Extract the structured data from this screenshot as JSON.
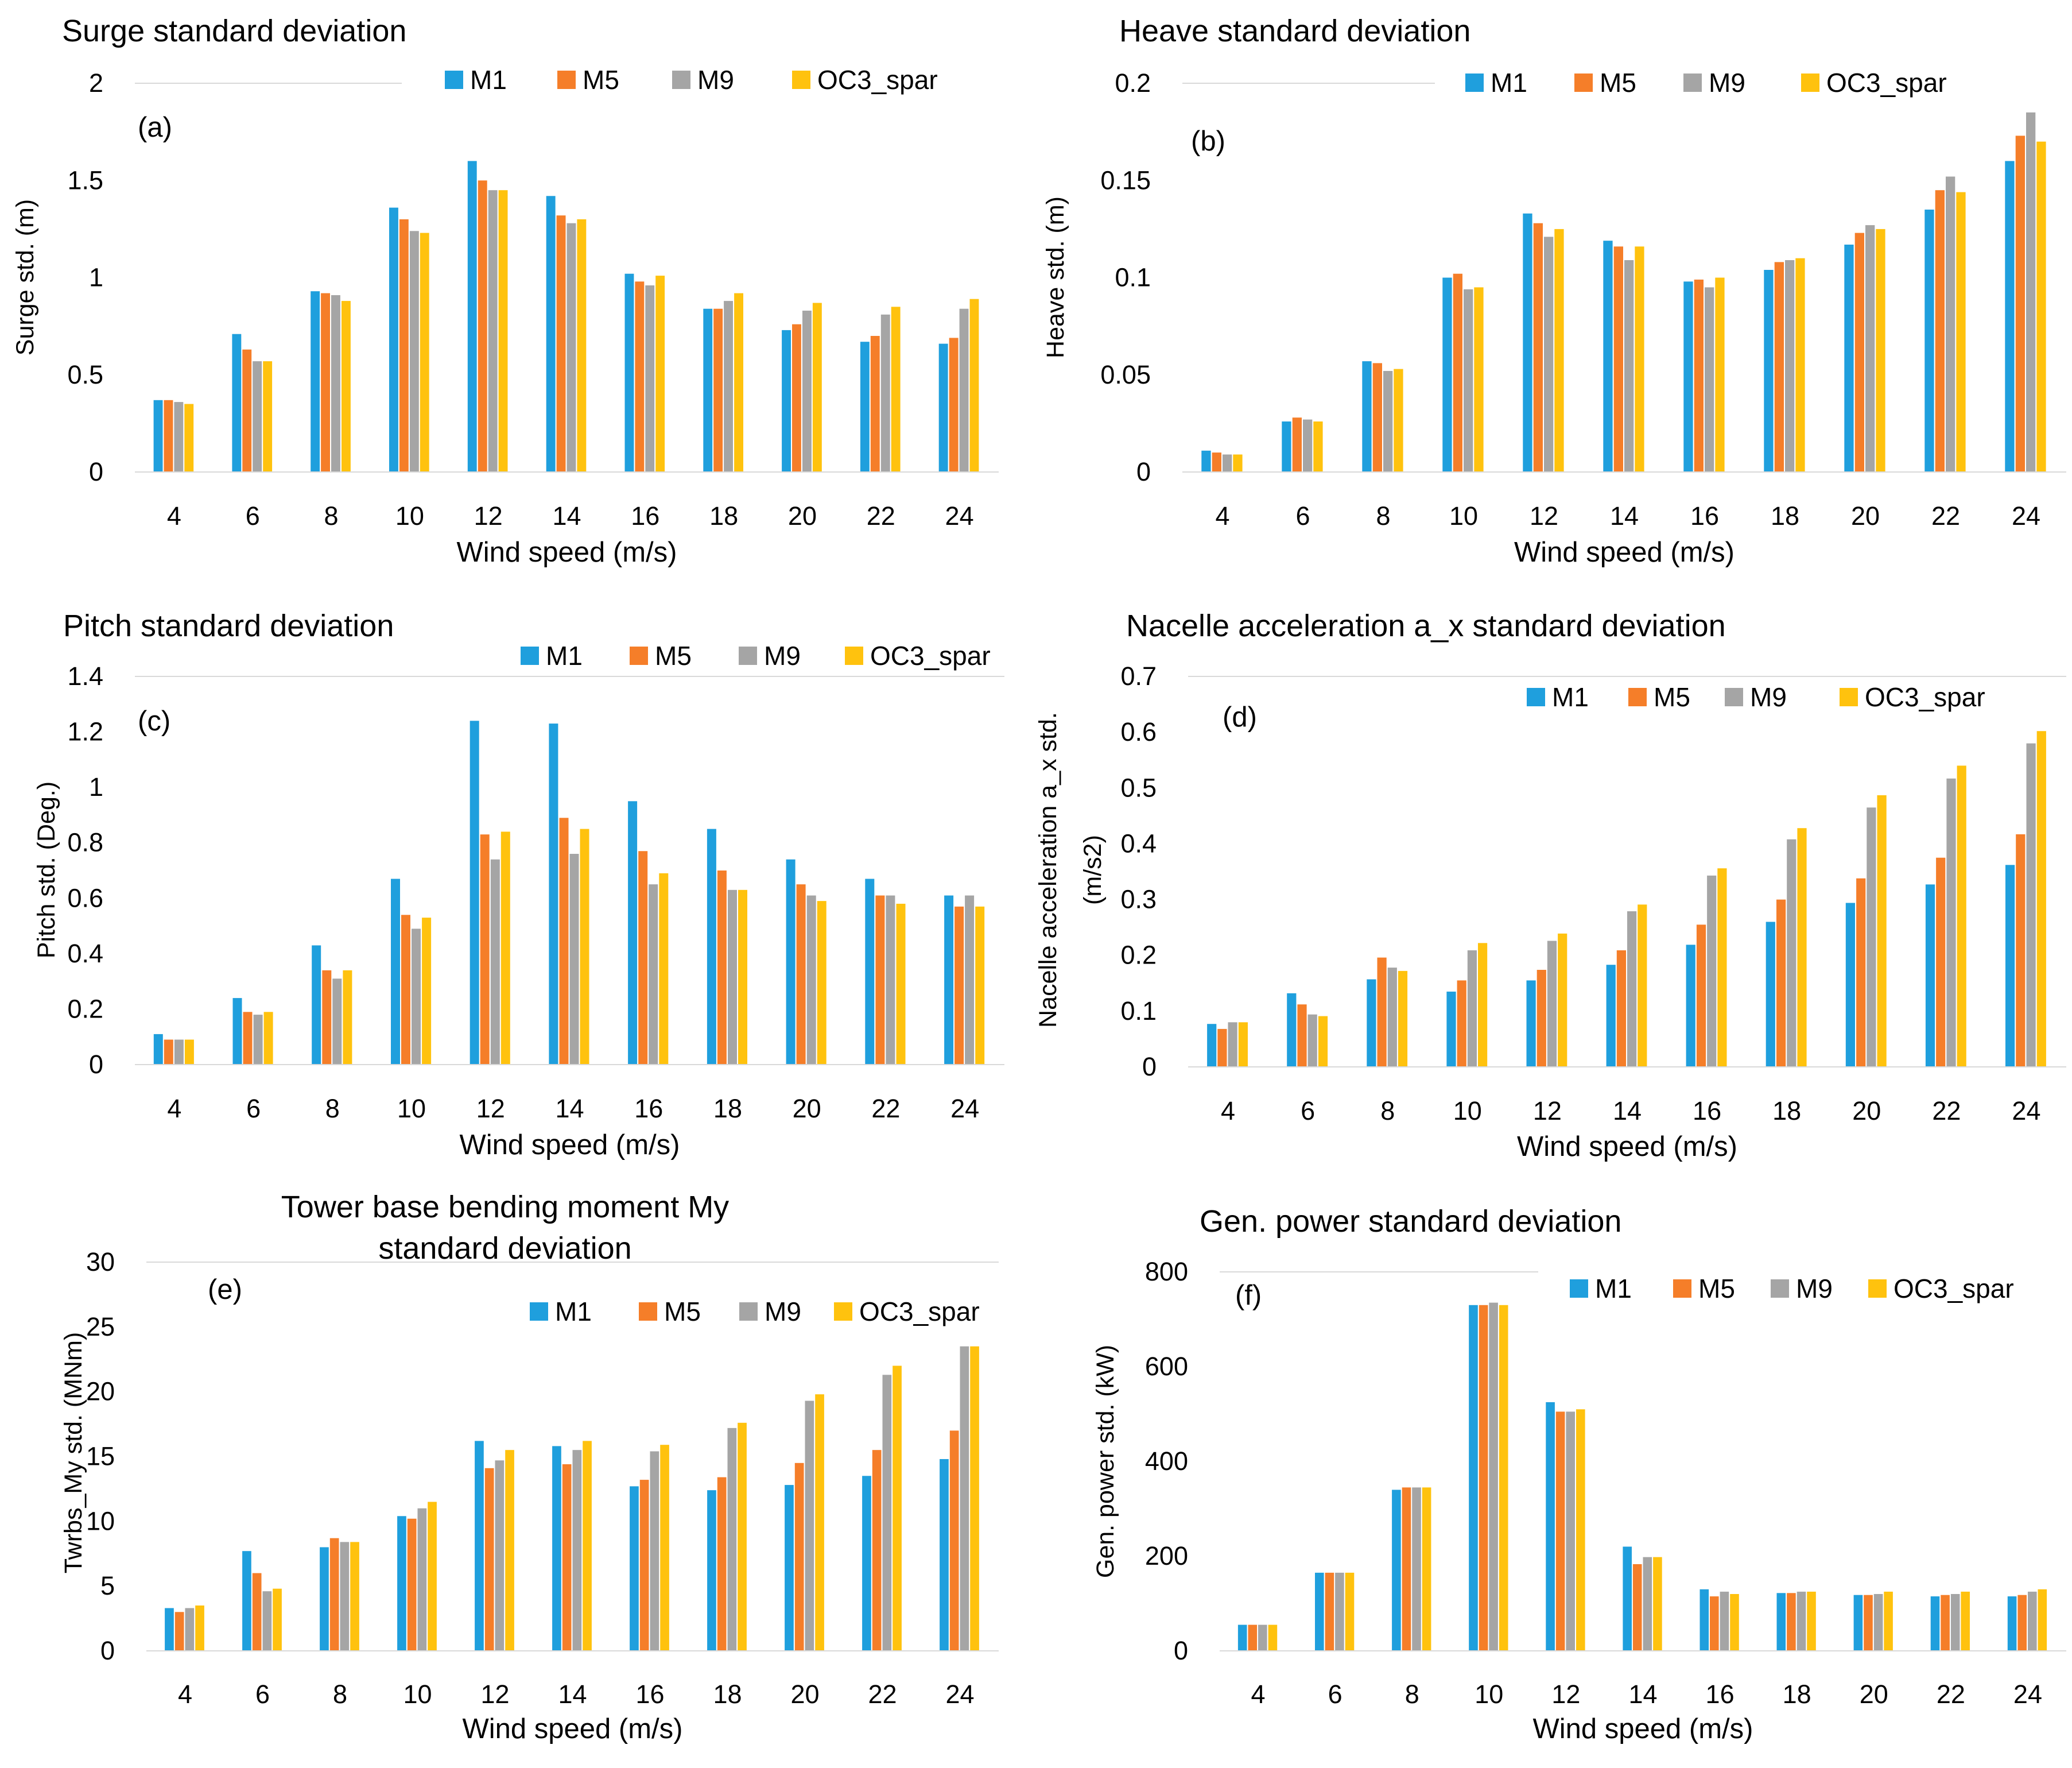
{
  "chart_data": [
    {
      "id": "a",
      "type": "bar",
      "panel_label": "(a)",
      "title": [
        "Surge standard deviation"
      ],
      "xlabel": "Wind speed (m/s)",
      "ylabel": [
        "Surge std. (m)"
      ],
      "categories": [
        "4",
        "6",
        "8",
        "10",
        "12",
        "14",
        "16",
        "18",
        "20",
        "22",
        "24"
      ],
      "ylim": [
        0,
        2
      ],
      "yticks": [
        0,
        0.5,
        1,
        1.5,
        2
      ],
      "ytick_labels": [
        "0",
        "0.5",
        "1",
        "1.5",
        "2"
      ],
      "legend_position": "top-right",
      "series": [
        {
          "name": "M1",
          "color": "#1f9fdd",
          "values": [
            0.37,
            0.71,
            0.93,
            1.36,
            1.6,
            1.42,
            1.02,
            0.84,
            0.73,
            0.67,
            0.66
          ]
        },
        {
          "name": "M5",
          "color": "#f57e29",
          "values": [
            0.37,
            0.63,
            0.92,
            1.3,
            1.5,
            1.32,
            0.98,
            0.84,
            0.76,
            0.7,
            0.69
          ]
        },
        {
          "name": "M9",
          "color": "#a5a5a5",
          "values": [
            0.36,
            0.57,
            0.91,
            1.24,
            1.45,
            1.28,
            0.96,
            0.88,
            0.83,
            0.81,
            0.84
          ]
        },
        {
          "name": "OC3_spar",
          "color": "#ffc20e",
          "values": [
            0.35,
            0.57,
            0.88,
            1.23,
            1.45,
            1.3,
            1.01,
            0.92,
            0.87,
            0.85,
            0.89
          ]
        }
      ]
    },
    {
      "id": "b",
      "type": "bar",
      "panel_label": "(b)",
      "title": [
        "Heave standard deviation"
      ],
      "xlabel": "Wind speed (m/s)",
      "ylabel": [
        "Heave std. (m)"
      ],
      "categories": [
        "4",
        "6",
        "8",
        "10",
        "12",
        "14",
        "16",
        "18",
        "20",
        "22",
        "24"
      ],
      "ylim": [
        0,
        0.2
      ],
      "yticks": [
        0,
        0.05,
        0.1,
        0.15,
        0.2
      ],
      "ytick_labels": [
        "0",
        "0.05",
        "0.1",
        "0.15",
        "0.2"
      ],
      "legend_position": "top-right",
      "series": [
        {
          "name": "M1",
          "color": "#1f9fdd",
          "values": [
            0.011,
            0.026,
            0.057,
            0.1,
            0.133,
            0.119,
            0.098,
            0.104,
            0.117,
            0.135,
            0.16
          ]
        },
        {
          "name": "M5",
          "color": "#f57e29",
          "values": [
            0.01,
            0.028,
            0.056,
            0.102,
            0.128,
            0.116,
            0.099,
            0.108,
            0.123,
            0.145,
            0.173
          ]
        },
        {
          "name": "M9",
          "color": "#a5a5a5",
          "values": [
            0.009,
            0.027,
            0.052,
            0.094,
            0.121,
            0.109,
            0.095,
            0.109,
            0.127,
            0.152,
            0.185
          ]
        },
        {
          "name": "OC3_spar",
          "color": "#ffc20e",
          "values": [
            0.009,
            0.026,
            0.053,
            0.095,
            0.125,
            0.116,
            0.1,
            0.11,
            0.125,
            0.144,
            0.17
          ]
        }
      ]
    },
    {
      "id": "c",
      "type": "bar",
      "panel_label": "(c)",
      "title": [
        "Pitch  standard deviation"
      ],
      "xlabel": "Wind speed (m/s)",
      "ylabel": [
        "Pitch std. (Deg.)"
      ],
      "categories": [
        "4",
        "6",
        "8",
        "10",
        "12",
        "14",
        "16",
        "18",
        "20",
        "22",
        "24"
      ],
      "ylim": [
        0,
        1.4
      ],
      "yticks": [
        0,
        0.2,
        0.4,
        0.6,
        0.8,
        1,
        1.2,
        1.4
      ],
      "ytick_labels": [
        "0",
        "0.2",
        "0.4",
        "0.6",
        "0.8",
        "1",
        "1.2",
        "1.4"
      ],
      "legend_position": "top-right",
      "series": [
        {
          "name": "M1",
          "color": "#1f9fdd",
          "values": [
            0.11,
            0.24,
            0.43,
            0.67,
            1.24,
            1.23,
            0.95,
            0.85,
            0.74,
            0.67,
            0.61
          ]
        },
        {
          "name": "M5",
          "color": "#f57e29",
          "values": [
            0.09,
            0.19,
            0.34,
            0.54,
            0.83,
            0.89,
            0.77,
            0.7,
            0.65,
            0.61,
            0.57
          ]
        },
        {
          "name": "M9",
          "color": "#a5a5a5",
          "values": [
            0.09,
            0.18,
            0.31,
            0.49,
            0.74,
            0.76,
            0.65,
            0.63,
            0.61,
            0.61,
            0.61
          ]
        },
        {
          "name": "OC3_spar",
          "color": "#ffc20e",
          "values": [
            0.09,
            0.19,
            0.34,
            0.53,
            0.84,
            0.85,
            0.69,
            0.63,
            0.59,
            0.58,
            0.57
          ]
        }
      ]
    },
    {
      "id": "d",
      "type": "bar",
      "panel_label": "(d)",
      "title": [
        "Nacelle acceleration a_x  standard deviation"
      ],
      "xlabel": "Wind speed (m/s)",
      "ylabel": [
        "Nacelle acceleration a_x std.",
        "(m/s2)"
      ],
      "categories": [
        "4",
        "6",
        "8",
        "10",
        "12",
        "14",
        "16",
        "18",
        "20",
        "22",
        "24"
      ],
      "ylim": [
        0,
        0.7
      ],
      "yticks": [
        0,
        0.1,
        0.2,
        0.3,
        0.4,
        0.5,
        0.6,
        0.7
      ],
      "ytick_labels": [
        "0",
        "0.1",
        "0.2",
        "0.3",
        "0.4",
        "0.5",
        "0.6",
        "0.7"
      ],
      "legend_position": "top-right",
      "series": [
        {
          "name": "M1",
          "color": "#1f9fdd",
          "values": [
            0.077,
            0.132,
            0.157,
            0.135,
            0.155,
            0.183,
            0.219,
            0.26,
            0.294,
            0.327,
            0.362
          ]
        },
        {
          "name": "M5",
          "color": "#f57e29",
          "values": [
            0.068,
            0.112,
            0.196,
            0.155,
            0.174,
            0.209,
            0.255,
            0.3,
            0.338,
            0.375,
            0.417
          ]
        },
        {
          "name": "M9",
          "color": "#a5a5a5",
          "values": [
            0.08,
            0.094,
            0.178,
            0.209,
            0.226,
            0.279,
            0.343,
            0.408,
            0.465,
            0.517,
            0.58
          ]
        },
        {
          "name": "OC3_spar",
          "color": "#ffc20e",
          "values": [
            0.08,
            0.091,
            0.172,
            0.222,
            0.239,
            0.291,
            0.356,
            0.428,
            0.487,
            0.54,
            0.602
          ]
        }
      ]
    },
    {
      "id": "e",
      "type": "bar",
      "panel_label": "(e)",
      "title": [
        "Tower base bending moment My",
        "standard deviation"
      ],
      "xlabel": "Wind speed (m/s)",
      "ylabel": [
        "Twrbs_My std. (MNm)"
      ],
      "categories": [
        "4",
        "6",
        "8",
        "10",
        "12",
        "14",
        "16",
        "18",
        "20",
        "22",
        "24"
      ],
      "ylim": [
        0,
        30
      ],
      "yticks": [
        0,
        5,
        10,
        15,
        20,
        25,
        30
      ],
      "ytick_labels": [
        "0",
        "5",
        "10",
        "15",
        "20",
        "25",
        "30"
      ],
      "legend_position": "top-right",
      "series": [
        {
          "name": "M1",
          "color": "#1f9fdd",
          "values": [
            3.3,
            7.7,
            8.0,
            10.4,
            16.2,
            15.8,
            12.7,
            12.4,
            12.8,
            13.5,
            14.8
          ]
        },
        {
          "name": "M5",
          "color": "#f57e29",
          "values": [
            3.0,
            6.0,
            8.7,
            10.2,
            14.1,
            14.4,
            13.2,
            13.4,
            14.5,
            15.5,
            17.0
          ]
        },
        {
          "name": "M9",
          "color": "#a5a5a5",
          "values": [
            3.3,
            4.6,
            8.4,
            11.0,
            14.7,
            15.5,
            15.4,
            17.2,
            19.3,
            21.3,
            23.5
          ]
        },
        {
          "name": "OC3_spar",
          "color": "#ffc20e",
          "values": [
            3.5,
            4.8,
            8.4,
            11.5,
            15.5,
            16.2,
            15.9,
            17.6,
            19.8,
            22.0,
            23.5
          ]
        }
      ]
    },
    {
      "id": "f",
      "type": "bar",
      "panel_label": "(f)",
      "title": [
        "Gen. power standard deviation"
      ],
      "xlabel": "Wind speed (m/s)",
      "ylabel": [
        "Gen. power std. (kW)"
      ],
      "categories": [
        "4",
        "6",
        "8",
        "10",
        "12",
        "14",
        "16",
        "18",
        "20",
        "22",
        "24"
      ],
      "ylim": [
        0,
        800
      ],
      "yticks": [
        0,
        200,
        400,
        600,
        800
      ],
      "ytick_labels": [
        "0",
        "200",
        "400",
        "600",
        "800"
      ],
      "legend_position": "top-right",
      "series": [
        {
          "name": "M1",
          "color": "#1f9fdd",
          "values": [
            55,
            165,
            340,
            730,
            525,
            220,
            130,
            122,
            118,
            115,
            115
          ]
        },
        {
          "name": "M5",
          "color": "#f57e29",
          "values": [
            55,
            165,
            345,
            730,
            505,
            183,
            115,
            122,
            118,
            118,
            118
          ]
        },
        {
          "name": "M9",
          "color": "#a5a5a5",
          "values": [
            55,
            165,
            345,
            735,
            505,
            198,
            125,
            125,
            120,
            120,
            125
          ]
        },
        {
          "name": "OC3_spar",
          "color": "#ffc20e",
          "values": [
            55,
            165,
            345,
            730,
            510,
            198,
            120,
            125,
            125,
            125,
            130
          ]
        }
      ]
    }
  ]
}
